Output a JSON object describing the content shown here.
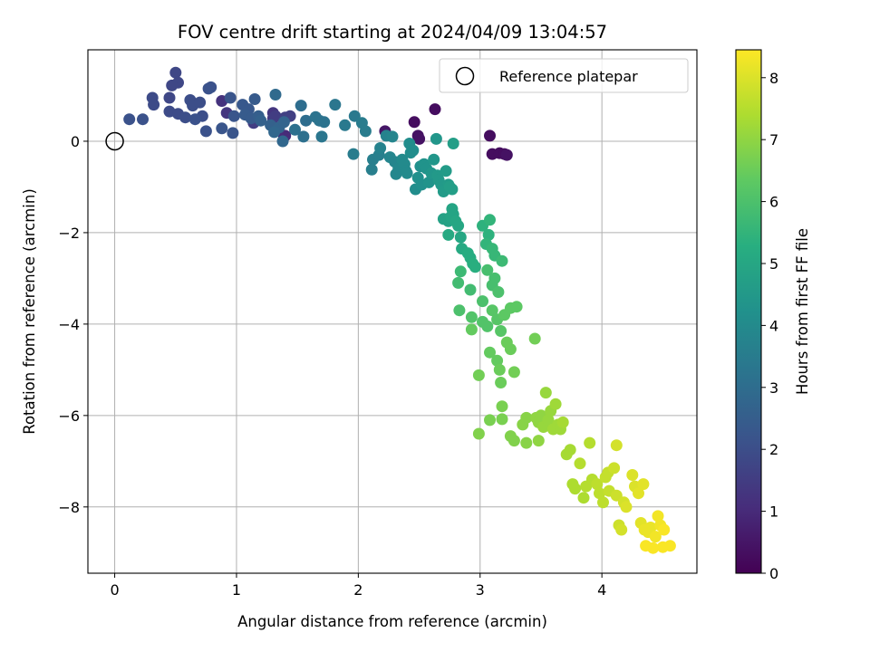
{
  "chart_data": {
    "type": "scatter",
    "title": "FOV centre drift starting at 2024/04/09 13:04:57",
    "xlabel": "Angular distance from reference (arcmin)",
    "ylabel": "Rotation from reference (arcmin)",
    "xlim": [
      -0.22,
      4.78
    ],
    "ylim": [
      -9.45,
      2.0
    ],
    "xticks": [
      0,
      1,
      2,
      3,
      4
    ],
    "yticks": [
      -8,
      -6,
      -4,
      -2,
      0
    ],
    "grid": true,
    "legend": {
      "placement": "top-right",
      "entries": [
        "Reference platepar"
      ]
    },
    "reference_point": {
      "x": 0,
      "y": 0
    },
    "colorbar": {
      "label": "Hours from first FF file",
      "colormap": "viridis",
      "range": [
        0,
        8.45
      ],
      "ticks": [
        0,
        1,
        2,
        3,
        4,
        5,
        6,
        7,
        8
      ]
    },
    "series": [
      {
        "columns": [
          "x",
          "y",
          "hours"
        ],
        "points": [
          [
            2.63,
            0.7,
            0.3
          ],
          [
            2.46,
            0.42,
            0.3
          ],
          [
            2.49,
            0.12,
            0.4
          ],
          [
            2.5,
            0.05,
            0.4
          ],
          [
            2.22,
            0.22,
            0.5
          ],
          [
            3.08,
            0.12,
            0.3
          ],
          [
            3.1,
            -0.28,
            0.3
          ],
          [
            3.16,
            -0.26,
            0.3
          ],
          [
            3.2,
            -0.28,
            0.3
          ],
          [
            3.22,
            -0.3,
            0.4
          ],
          [
            1.39,
            0.1,
            1.0
          ],
          [
            1.4,
            0.12,
            1.0
          ],
          [
            0.88,
            0.88,
            1.2
          ],
          [
            0.92,
            0.62,
            1.3
          ],
          [
            1.3,
            0.62,
            1.3
          ],
          [
            1.3,
            0.5,
            1.4
          ],
          [
            1.14,
            0.4,
            1.5
          ],
          [
            1.32,
            0.55,
            1.5
          ],
          [
            1.4,
            0.52,
            1.6
          ],
          [
            1.44,
            0.55,
            1.6
          ],
          [
            0.5,
            1.5,
            1.8
          ],
          [
            0.52,
            1.28,
            1.8
          ],
          [
            0.47,
            1.22,
            1.8
          ],
          [
            0.45,
            0.95,
            1.8
          ],
          [
            0.31,
            0.95,
            1.9
          ],
          [
            0.32,
            0.8,
            1.9
          ],
          [
            0.45,
            0.65,
            1.9
          ],
          [
            0.52,
            0.6,
            1.9
          ],
          [
            0.58,
            0.52,
            2.0
          ],
          [
            0.62,
            0.9,
            2.0
          ],
          [
            0.64,
            0.78,
            2.0
          ],
          [
            0.7,
            0.85,
            2.0
          ],
          [
            0.72,
            0.55,
            2.0
          ],
          [
            0.66,
            0.48,
            2.1
          ],
          [
            0.77,
            1.15,
            2.1
          ],
          [
            0.79,
            1.18,
            2.1
          ],
          [
            0.75,
            0.22,
            2.1
          ],
          [
            0.23,
            0.48,
            2.1
          ],
          [
            0.12,
            0.48,
            2.1
          ],
          [
            0.95,
            0.95,
            2.2
          ],
          [
            0.98,
            0.55,
            2.2
          ],
          [
            0.97,
            0.18,
            2.2
          ],
          [
            0.88,
            0.28,
            2.2
          ],
          [
            1.05,
            0.8,
            2.3
          ],
          [
            1.1,
            0.7,
            2.3
          ],
          [
            1.07,
            0.58,
            2.4
          ],
          [
            1.12,
            0.5,
            2.4
          ],
          [
            1.15,
            0.92,
            2.4
          ],
          [
            1.18,
            0.55,
            2.5
          ],
          [
            1.2,
            0.45,
            2.6
          ],
          [
            1.28,
            0.35,
            2.6
          ],
          [
            1.35,
            0.3,
            2.7
          ],
          [
            1.39,
            0.42,
            2.7
          ],
          [
            1.31,
            0.2,
            2.8
          ],
          [
            1.38,
            0.0,
            2.8
          ],
          [
            1.32,
            1.02,
            2.9
          ],
          [
            1.53,
            0.78,
            3.0
          ],
          [
            1.57,
            0.45,
            3.0
          ],
          [
            1.48,
            0.25,
            3.1
          ],
          [
            1.55,
            0.1,
            3.1
          ],
          [
            1.65,
            0.53,
            3.2
          ],
          [
            1.68,
            0.45,
            3.2
          ],
          [
            1.72,
            0.42,
            3.2
          ],
          [
            1.7,
            0.1,
            3.3
          ],
          [
            1.81,
            0.8,
            3.3
          ],
          [
            1.89,
            0.35,
            3.4
          ],
          [
            1.97,
            0.55,
            3.4
          ],
          [
            1.96,
            -0.28,
            3.5
          ],
          [
            2.03,
            0.4,
            3.5
          ],
          [
            2.06,
            0.22,
            3.5
          ],
          [
            2.12,
            -0.4,
            3.6
          ],
          [
            2.11,
            -0.62,
            3.6
          ],
          [
            2.17,
            -0.3,
            3.6
          ],
          [
            2.18,
            -0.15,
            3.7
          ],
          [
            2.23,
            0.12,
            3.7
          ],
          [
            2.28,
            0.1,
            3.8
          ],
          [
            2.26,
            -0.35,
            3.8
          ],
          [
            2.3,
            -0.45,
            3.8
          ],
          [
            2.31,
            -0.72,
            3.9
          ],
          [
            2.33,
            -0.6,
            3.9
          ],
          [
            2.35,
            -0.55,
            3.9
          ],
          [
            2.36,
            -0.4,
            4.0
          ],
          [
            2.38,
            -0.5,
            4.0
          ],
          [
            2.39,
            -0.65,
            4.0
          ],
          [
            2.4,
            -0.7,
            4.0
          ],
          [
            2.42,
            -0.05,
            4.1
          ],
          [
            2.43,
            -0.25,
            4.1
          ],
          [
            2.45,
            -0.2,
            4.1
          ],
          [
            2.47,
            -1.05,
            4.1
          ],
          [
            2.49,
            -0.8,
            4.2
          ],
          [
            2.51,
            -0.55,
            4.2
          ],
          [
            2.52,
            -0.95,
            4.2
          ],
          [
            2.54,
            -0.5,
            4.3
          ],
          [
            2.56,
            -0.6,
            4.3
          ],
          [
            2.58,
            -0.9,
            4.3
          ],
          [
            2.6,
            -0.7,
            4.4
          ],
          [
            2.62,
            -0.4,
            4.4
          ],
          [
            2.64,
            0.05,
            4.4
          ],
          [
            2.65,
            -0.75,
            4.5
          ],
          [
            2.66,
            -0.85,
            4.5
          ],
          [
            2.68,
            -0.95,
            4.5
          ],
          [
            2.7,
            -1.1,
            4.6
          ],
          [
            2.72,
            -0.65,
            4.6
          ],
          [
            2.74,
            -0.95,
            4.6
          ],
          [
            2.75,
            -1.0,
            4.7
          ],
          [
            2.77,
            -1.05,
            4.7
          ],
          [
            2.78,
            -0.05,
            4.7
          ],
          [
            2.7,
            -1.7,
            4.8
          ],
          [
            2.74,
            -1.75,
            4.8
          ],
          [
            2.76,
            -1.65,
            4.9
          ],
          [
            2.78,
            -1.6,
            4.9
          ],
          [
            2.77,
            -1.48,
            4.9
          ],
          [
            2.8,
            -1.75,
            5.0
          ],
          [
            2.82,
            -1.85,
            5.0
          ],
          [
            2.84,
            -2.1,
            5.0
          ],
          [
            2.74,
            -2.05,
            5.1
          ],
          [
            2.85,
            -2.35,
            5.1
          ],
          [
            2.9,
            -2.45,
            5.2
          ],
          [
            2.92,
            -2.55,
            5.2
          ],
          [
            2.94,
            -2.68,
            5.3
          ],
          [
            2.96,
            -2.75,
            5.3
          ],
          [
            3.02,
            -1.85,
            5.4
          ],
          [
            3.07,
            -2.05,
            5.4
          ],
          [
            3.08,
            -1.72,
            5.5
          ],
          [
            3.05,
            -2.25,
            5.5
          ],
          [
            3.1,
            -2.35,
            5.6
          ],
          [
            3.12,
            -2.5,
            5.6
          ],
          [
            3.18,
            -2.62,
            5.7
          ],
          [
            2.84,
            -2.85,
            5.7
          ],
          [
            2.82,
            -3.1,
            5.8
          ],
          [
            2.92,
            -3.25,
            5.8
          ],
          [
            3.06,
            -2.82,
            5.9
          ],
          [
            3.1,
            -3.15,
            5.9
          ],
          [
            3.12,
            -3.0,
            5.9
          ],
          [
            3.15,
            -3.3,
            6.0
          ],
          [
            3.02,
            -3.5,
            6.0
          ],
          [
            2.83,
            -3.7,
            6.0
          ],
          [
            2.93,
            -3.85,
            6.1
          ],
          [
            3.02,
            -3.95,
            6.1
          ],
          [
            3.06,
            -4.05,
            6.1
          ],
          [
            3.1,
            -3.7,
            6.2
          ],
          [
            3.14,
            -3.9,
            6.2
          ],
          [
            3.17,
            -4.15,
            6.2
          ],
          [
            3.2,
            -3.8,
            6.3
          ],
          [
            3.25,
            -3.65,
            6.3
          ],
          [
            3.3,
            -3.62,
            6.3
          ],
          [
            2.93,
            -4.12,
            6.4
          ],
          [
            3.08,
            -4.62,
            6.4
          ],
          [
            3.14,
            -4.8,
            6.4
          ],
          [
            3.16,
            -5.0,
            6.5
          ],
          [
            3.17,
            -5.28,
            6.5
          ],
          [
            3.22,
            -4.4,
            6.5
          ],
          [
            3.25,
            -4.55,
            6.5
          ],
          [
            3.28,
            -5.05,
            6.6
          ],
          [
            3.45,
            -4.32,
            6.6
          ],
          [
            2.99,
            -5.12,
            6.6
          ],
          [
            3.18,
            -5.8,
            6.7
          ],
          [
            3.18,
            -6.08,
            6.7
          ],
          [
            3.08,
            -6.1,
            6.7
          ],
          [
            2.99,
            -6.4,
            6.8
          ],
          [
            3.25,
            -6.45,
            6.8
          ],
          [
            3.28,
            -6.55,
            6.8
          ],
          [
            3.35,
            -6.2,
            6.9
          ],
          [
            3.38,
            -6.05,
            6.9
          ],
          [
            3.38,
            -6.6,
            6.9
          ],
          [
            3.46,
            -6.05,
            7.0
          ],
          [
            3.48,
            -6.15,
            7.0
          ],
          [
            3.48,
            -6.55,
            7.0
          ],
          [
            3.5,
            -6.0,
            7.0
          ],
          [
            3.52,
            -6.25,
            7.1
          ],
          [
            3.54,
            -5.5,
            7.1
          ],
          [
            3.56,
            -6.1,
            7.1
          ],
          [
            3.58,
            -5.9,
            7.1
          ],
          [
            3.6,
            -6.3,
            7.2
          ],
          [
            3.62,
            -5.75,
            7.2
          ],
          [
            3.64,
            -6.2,
            7.2
          ],
          [
            3.66,
            -6.3,
            7.2
          ],
          [
            3.68,
            -6.15,
            7.3
          ],
          [
            3.71,
            -6.85,
            7.3
          ],
          [
            3.74,
            -6.75,
            7.3
          ],
          [
            3.76,
            -7.5,
            7.4
          ],
          [
            3.78,
            -7.6,
            7.4
          ],
          [
            3.85,
            -7.8,
            7.4
          ],
          [
            3.82,
            -7.05,
            7.5
          ],
          [
            3.87,
            -7.55,
            7.5
          ],
          [
            3.9,
            -6.6,
            7.5
          ],
          [
            3.92,
            -7.4,
            7.5
          ],
          [
            3.96,
            -7.5,
            7.6
          ],
          [
            3.98,
            -7.7,
            7.6
          ],
          [
            4.01,
            -7.9,
            7.6
          ],
          [
            4.03,
            -7.35,
            7.7
          ],
          [
            4.05,
            -7.25,
            7.7
          ],
          [
            4.06,
            -7.65,
            7.7
          ],
          [
            4.1,
            -7.15,
            7.8
          ],
          [
            4.12,
            -7.75,
            7.8
          ],
          [
            4.14,
            -8.4,
            7.8
          ],
          [
            4.16,
            -8.5,
            7.9
          ],
          [
            4.18,
            -7.9,
            7.9
          ],
          [
            4.12,
            -6.65,
            7.9
          ],
          [
            4.2,
            -8.0,
            8.0
          ],
          [
            4.25,
            -7.3,
            8.0
          ],
          [
            4.27,
            -7.55,
            8.0
          ],
          [
            4.3,
            -7.7,
            8.1
          ],
          [
            4.34,
            -7.5,
            8.1
          ],
          [
            4.32,
            -8.35,
            8.1
          ],
          [
            4.35,
            -8.5,
            8.2
          ],
          [
            4.38,
            -8.55,
            8.2
          ],
          [
            4.4,
            -8.45,
            8.2
          ],
          [
            4.44,
            -8.65,
            8.3
          ],
          [
            4.46,
            -8.2,
            8.3
          ],
          [
            4.48,
            -8.4,
            8.3
          ],
          [
            4.51,
            -8.5,
            8.4
          ],
          [
            4.42,
            -8.9,
            8.4
          ],
          [
            4.36,
            -8.85,
            8.4
          ],
          [
            4.5,
            -8.88,
            8.4
          ],
          [
            4.56,
            -8.85,
            8.4
          ]
        ]
      }
    ]
  }
}
